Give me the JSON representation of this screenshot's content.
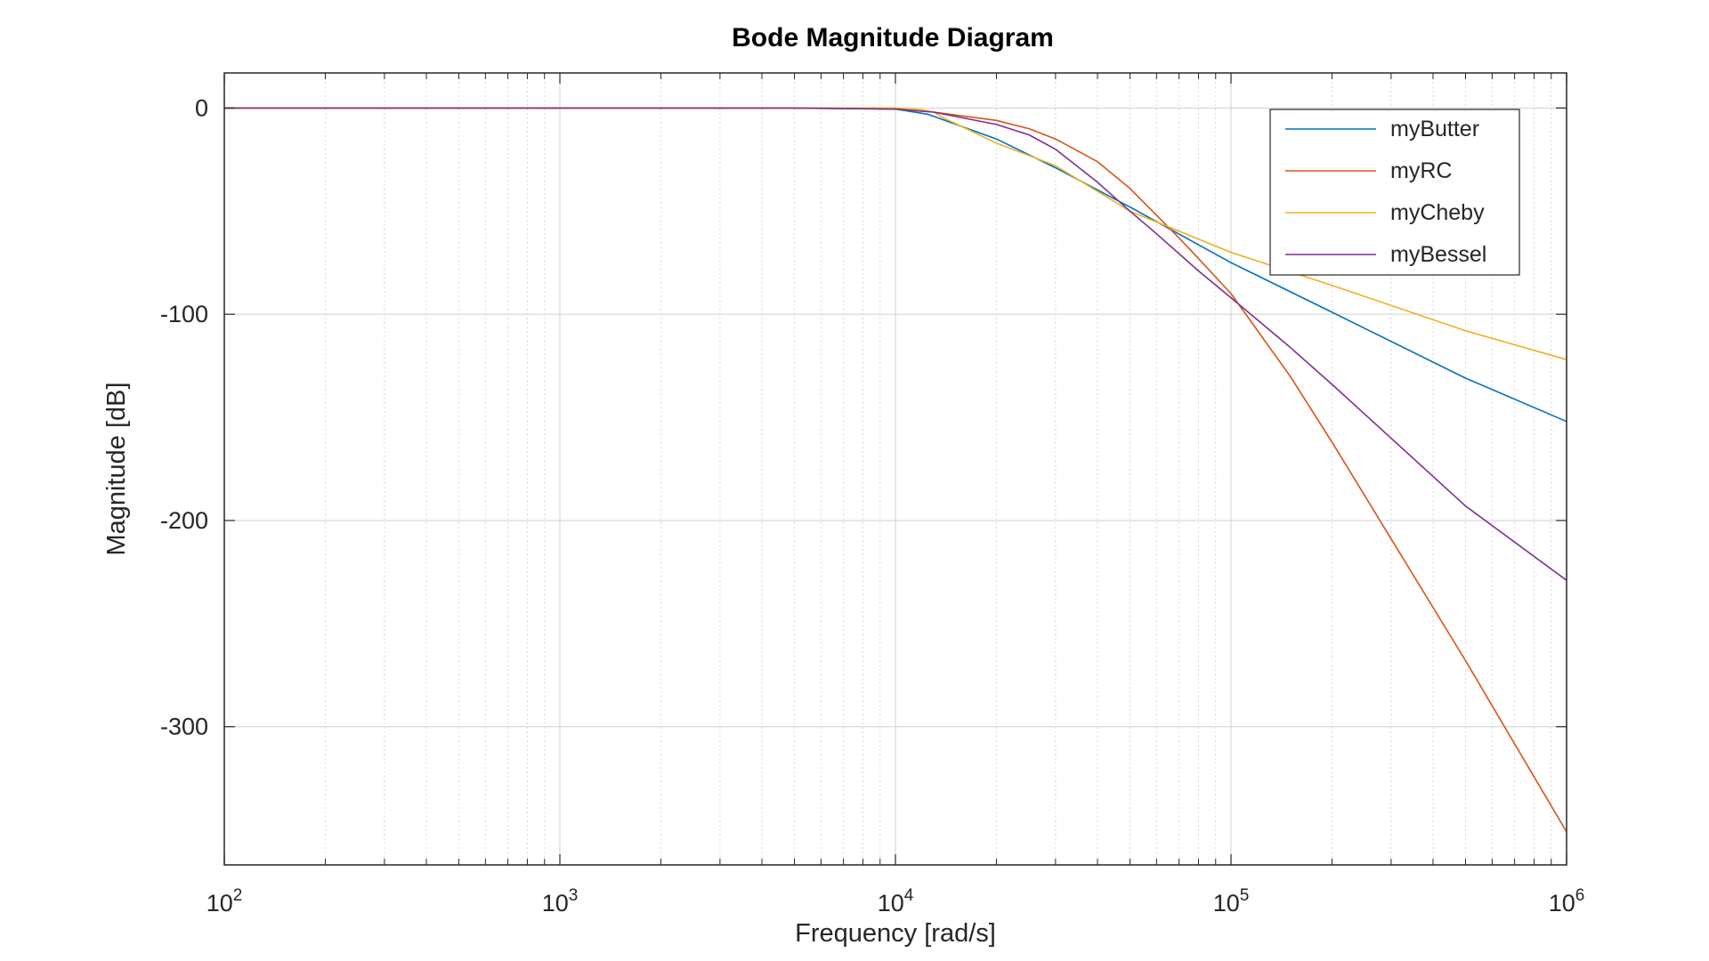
{
  "chart_data": {
    "type": "line",
    "title": "Bode Magnitude Diagram",
    "xlabel": "Frequency [rad/s]",
    "ylabel": "Magnitude [dB]",
    "xscale": "log",
    "xlim": [
      100,
      1000000
    ],
    "ylim": [
      -367,
      17
    ],
    "x_ticks": [
      {
        "value": 100,
        "base": "10",
        "exp": "2"
      },
      {
        "value": 1000,
        "base": "10",
        "exp": "3"
      },
      {
        "value": 10000,
        "base": "10",
        "exp": "4"
      },
      {
        "value": 100000,
        "base": "10",
        "exp": "5"
      },
      {
        "value": 1000000,
        "base": "10",
        "exp": "6"
      }
    ],
    "y_ticks": [
      {
        "value": 0,
        "label": "0"
      },
      {
        "value": -100,
        "label": "-100"
      },
      {
        "value": -200,
        "label": "-200"
      },
      {
        "value": -300,
        "label": "-300"
      }
    ],
    "grid": true,
    "minor_grid": true,
    "legend_position": "top-right",
    "series": [
      {
        "name": "myButter",
        "color": "#0072BD",
        "x": [
          100,
          1000,
          3000,
          6000,
          10000,
          12500,
          20000,
          30000,
          50000,
          100000,
          200000,
          500000,
          1000000
        ],
        "y": [
          0,
          0,
          0,
          0,
          -0.5,
          -3,
          -15,
          -29,
          -48,
          -75,
          -99,
          -131,
          -152
        ]
      },
      {
        "name": "myRC",
        "color": "#D95319",
        "x": [
          100,
          1000,
          5000,
          10000,
          13000,
          20000,
          25000,
          30000,
          40000,
          50000,
          60000,
          70000,
          80000,
          100000,
          150000,
          200000,
          500000,
          1000000
        ],
        "y": [
          0,
          0,
          0,
          -0.5,
          -2,
          -6,
          -10,
          -15,
          -26,
          -39,
          -52,
          -63,
          -73,
          -90,
          -130,
          -162,
          -268,
          -351
        ]
      },
      {
        "name": "myCheby",
        "color": "#EDB120",
        "x": [
          100,
          1000,
          5000,
          10000,
          12000,
          13000,
          14000,
          20000,
          30000,
          50000,
          100000,
          200000,
          500000,
          1000000
        ],
        "y": [
          0,
          0,
          0,
          0,
          -0.8,
          -2,
          -5,
          -17,
          -28,
          -50,
          -70,
          -86,
          -108,
          -122
        ]
      },
      {
        "name": "myBessel",
        "color": "#7E2F8E",
        "x": [
          100,
          1000,
          5000,
          10000,
          13000,
          20000,
          25000,
          30000,
          40000,
          50000,
          60000,
          80000,
          100000,
          150000,
          200000,
          500000,
          1000000
        ],
        "y": [
          0,
          0,
          0,
          -0.5,
          -2,
          -8,
          -13,
          -20,
          -36,
          -50,
          -61,
          -79,
          -92,
          -116,
          -134,
          -193,
          -229
        ]
      }
    ]
  }
}
